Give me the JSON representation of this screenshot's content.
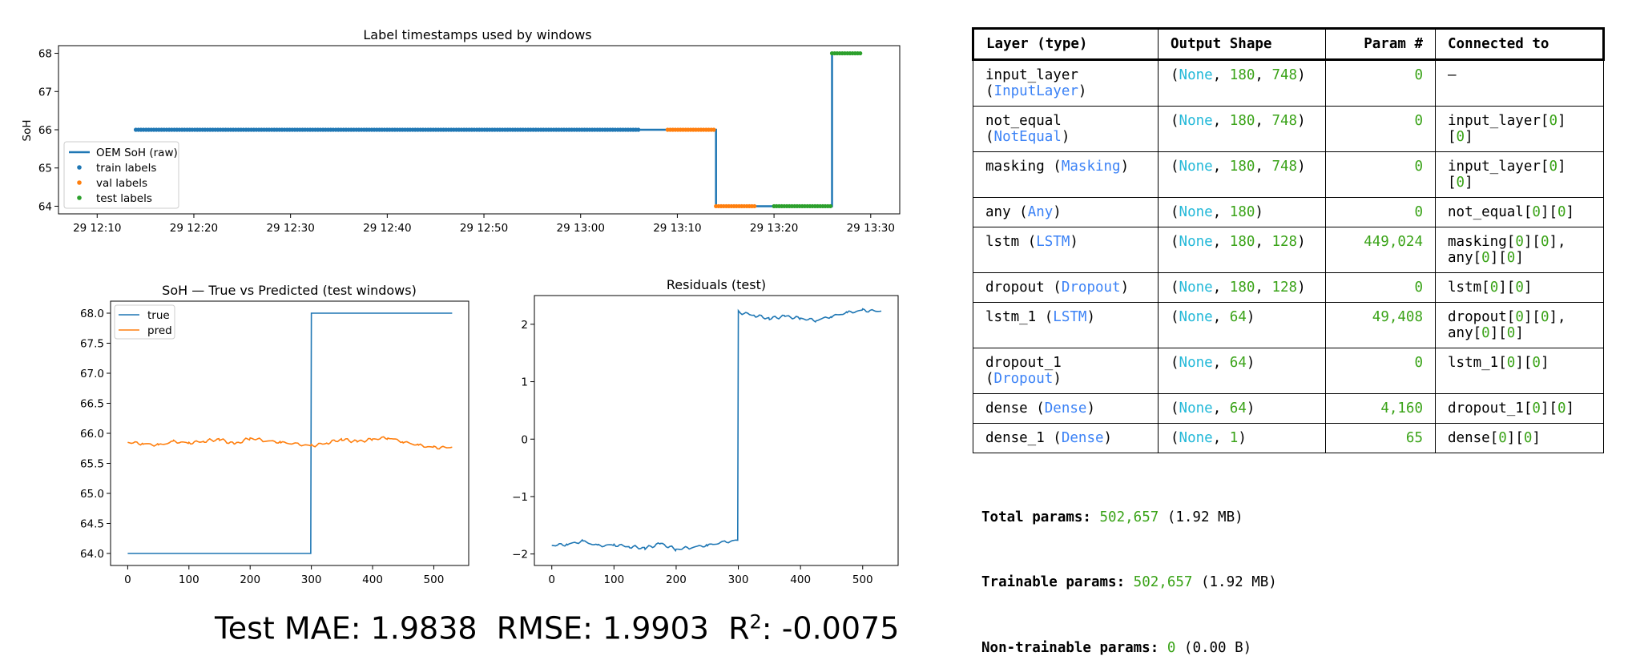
{
  "colors": {
    "train": "#1f77b4",
    "val": "#ff7f0e",
    "test": "#2ca02c",
    "true": "#1f77b4",
    "pred": "#ff7f0e",
    "layer_class": "#3b82f6",
    "none": "#22b8d8",
    "number": "#3aa318"
  },
  "chart_data": [
    {
      "type": "line",
      "title": "Label timestamps used by windows",
      "xlabel": "",
      "ylabel": "SoH",
      "xticks": [
        "29 12:10",
        "29 12:20",
        "29 12:30",
        "29 12:40",
        "29 12:50",
        "29 13:00",
        "29 13:10",
        "29 13:20",
        "29 13:30"
      ],
      "yticks": [
        64,
        65,
        66,
        67,
        68
      ],
      "ylim": [
        63.8,
        68.2
      ],
      "legend": {
        "placement": "lower-left",
        "entries": [
          "OEM SoH (raw)",
          "train labels",
          "val labels",
          "test labels"
        ]
      },
      "series": [
        {
          "name": "OEM SoH (raw)",
          "type": "line",
          "points": [
            [
              "12:14",
              66
            ],
            [
              "13:14",
              66
            ],
            [
              "13:14",
              64
            ],
            [
              "13:26",
              64
            ],
            [
              "13:26",
              68
            ],
            [
              "13:29",
              68
            ]
          ]
        },
        {
          "name": "train labels",
          "type": "scatter",
          "value": 66,
          "x_range": [
            "12:14",
            "13:06"
          ]
        },
        {
          "name": "val labels",
          "type": "scatter",
          "segments": [
            [
              66,
              "13:09",
              "13:14"
            ],
            [
              64,
              "13:14",
              "13:18"
            ]
          ]
        },
        {
          "name": "test labels",
          "type": "scatter",
          "segments": [
            [
              64,
              "13:20",
              "13:26"
            ],
            [
              68,
              "13:26",
              "13:29"
            ]
          ]
        }
      ]
    },
    {
      "type": "line",
      "title": "SoH — True vs Predicted (test windows)",
      "xlabel": "",
      "ylabel": "",
      "xticks": [
        0,
        100,
        200,
        300,
        400,
        500
      ],
      "yticks": [
        "64.0",
        "64.5",
        "65.0",
        "65.5",
        "66.0",
        "66.5",
        "67.0",
        "67.5",
        "68.0"
      ],
      "xlim": [
        -28,
        557
      ],
      "ylim": [
        63.8,
        68.2
      ],
      "legend": {
        "placement": "upper-left",
        "entries": [
          "true",
          "pred"
        ]
      },
      "series": [
        {
          "name": "true",
          "x": [
            0,
            299,
            300,
            530
          ],
          "values": [
            64,
            64,
            68,
            68
          ]
        },
        {
          "name": "pred",
          "x": [
            0,
            25,
            50,
            75,
            100,
            125,
            150,
            175,
            200,
            225,
            250,
            275,
            300,
            325,
            350,
            375,
            400,
            425,
            450,
            475,
            500,
            530
          ],
          "values": [
            65.85,
            65.83,
            65.8,
            65.86,
            65.84,
            65.87,
            65.9,
            65.82,
            65.92,
            65.88,
            65.85,
            65.82,
            65.79,
            65.84,
            65.9,
            65.86,
            65.9,
            65.93,
            65.86,
            65.8,
            65.76,
            65.77
          ]
        }
      ]
    },
    {
      "type": "line",
      "title": "Residuals (test)",
      "xlabel": "",
      "ylabel": "",
      "xticks": [
        0,
        100,
        200,
        300,
        400,
        500
      ],
      "yticks": [
        -2,
        -1,
        0,
        1,
        2
      ],
      "xlim": [
        -28,
        557
      ],
      "ylim": [
        -2.2,
        2.5
      ],
      "series": [
        {
          "name": "",
          "x": [
            0,
            25,
            50,
            75,
            100,
            125,
            150,
            175,
            200,
            225,
            250,
            275,
            299,
            300,
            325,
            350,
            375,
            400,
            425,
            450,
            475,
            500,
            530
          ],
          "values": [
            -1.85,
            -1.83,
            -1.78,
            -1.86,
            -1.84,
            -1.87,
            -1.9,
            -1.82,
            -1.92,
            -1.88,
            -1.85,
            -1.8,
            -1.76,
            2.21,
            2.16,
            2.1,
            2.14,
            2.1,
            2.07,
            2.14,
            2.2,
            2.24,
            2.23
          ]
        }
      ]
    }
  ],
  "model_summary": {
    "headers": [
      "Layer (type)",
      "Output Shape",
      "Param #",
      "Connected to"
    ],
    "rows": [
      {
        "name": "input_layer",
        "cls": "InputLayer",
        "break": true,
        "shape": [
          "180",
          "748"
        ],
        "params": "0",
        "conn": [
          [
            "–"
          ]
        ]
      },
      {
        "name": "not_equal",
        "cls": "NotEqual",
        "break": true,
        "shape": [
          "180",
          "748"
        ],
        "params": "0",
        "conn": [
          [
            "input_layer",
            "0",
            "0"
          ]
        ]
      },
      {
        "name": "masking",
        "cls": "Masking",
        "break": false,
        "shape": [
          "180",
          "748"
        ],
        "params": "0",
        "conn": [
          [
            "input_layer",
            "0",
            "0"
          ]
        ]
      },
      {
        "name": "any",
        "cls": "Any",
        "break": false,
        "shape": [
          "180"
        ],
        "params": "0",
        "conn": [
          [
            "not_equal",
            "0",
            "0"
          ]
        ]
      },
      {
        "name": "lstm",
        "cls": "LSTM",
        "break": false,
        "shape": [
          "180",
          "128"
        ],
        "params": "449,024",
        "conn": [
          [
            "masking",
            "0",
            "0",
            ","
          ],
          [
            "any",
            "0",
            "0"
          ]
        ]
      },
      {
        "name": "dropout",
        "cls": "Dropout",
        "break": false,
        "shape": [
          "180",
          "128"
        ],
        "params": "0",
        "conn": [
          [
            "lstm",
            "0",
            "0"
          ]
        ]
      },
      {
        "name": "lstm_1",
        "cls": "LSTM",
        "break": false,
        "shape": [
          "64"
        ],
        "params": "49,408",
        "conn": [
          [
            "dropout",
            "0",
            "0",
            ","
          ],
          [
            "any",
            "0",
            "0"
          ]
        ]
      },
      {
        "name": "dropout_1",
        "cls": "Dropout",
        "break": false,
        "shape": [
          "64"
        ],
        "params": "0",
        "conn": [
          [
            "lstm_1",
            "0",
            "0"
          ]
        ]
      },
      {
        "name": "dense",
        "cls": "Dense",
        "break": false,
        "shape": [
          "64"
        ],
        "params": "4,160",
        "conn": [
          [
            "dropout_1",
            "0",
            "0"
          ]
        ]
      },
      {
        "name": "dense_1",
        "cls": "Dense",
        "break": false,
        "shape": [
          "1"
        ],
        "params": "65",
        "conn": [
          [
            "dense",
            "0",
            "0"
          ]
        ]
      }
    ],
    "none_text": "None",
    "total": {
      "label": "Total params:",
      "value": "502,657",
      "size": "(1.92 MB)"
    },
    "trainable": {
      "label": "Trainable params:",
      "value": "502,657",
      "size": "(1.92 MB)"
    },
    "non_trainable": {
      "label": "Non-trainable params:",
      "value": "0",
      "size": "(0.00 B)"
    }
  },
  "metrics": {
    "mae_label": "Test MAE:",
    "mae": "1.9838",
    "rmse_label": "RMSE:",
    "rmse": "1.9903",
    "r2_label": "R",
    "r2_sup": "2",
    "r2_colon": ":",
    "r2": "-0.0075"
  }
}
